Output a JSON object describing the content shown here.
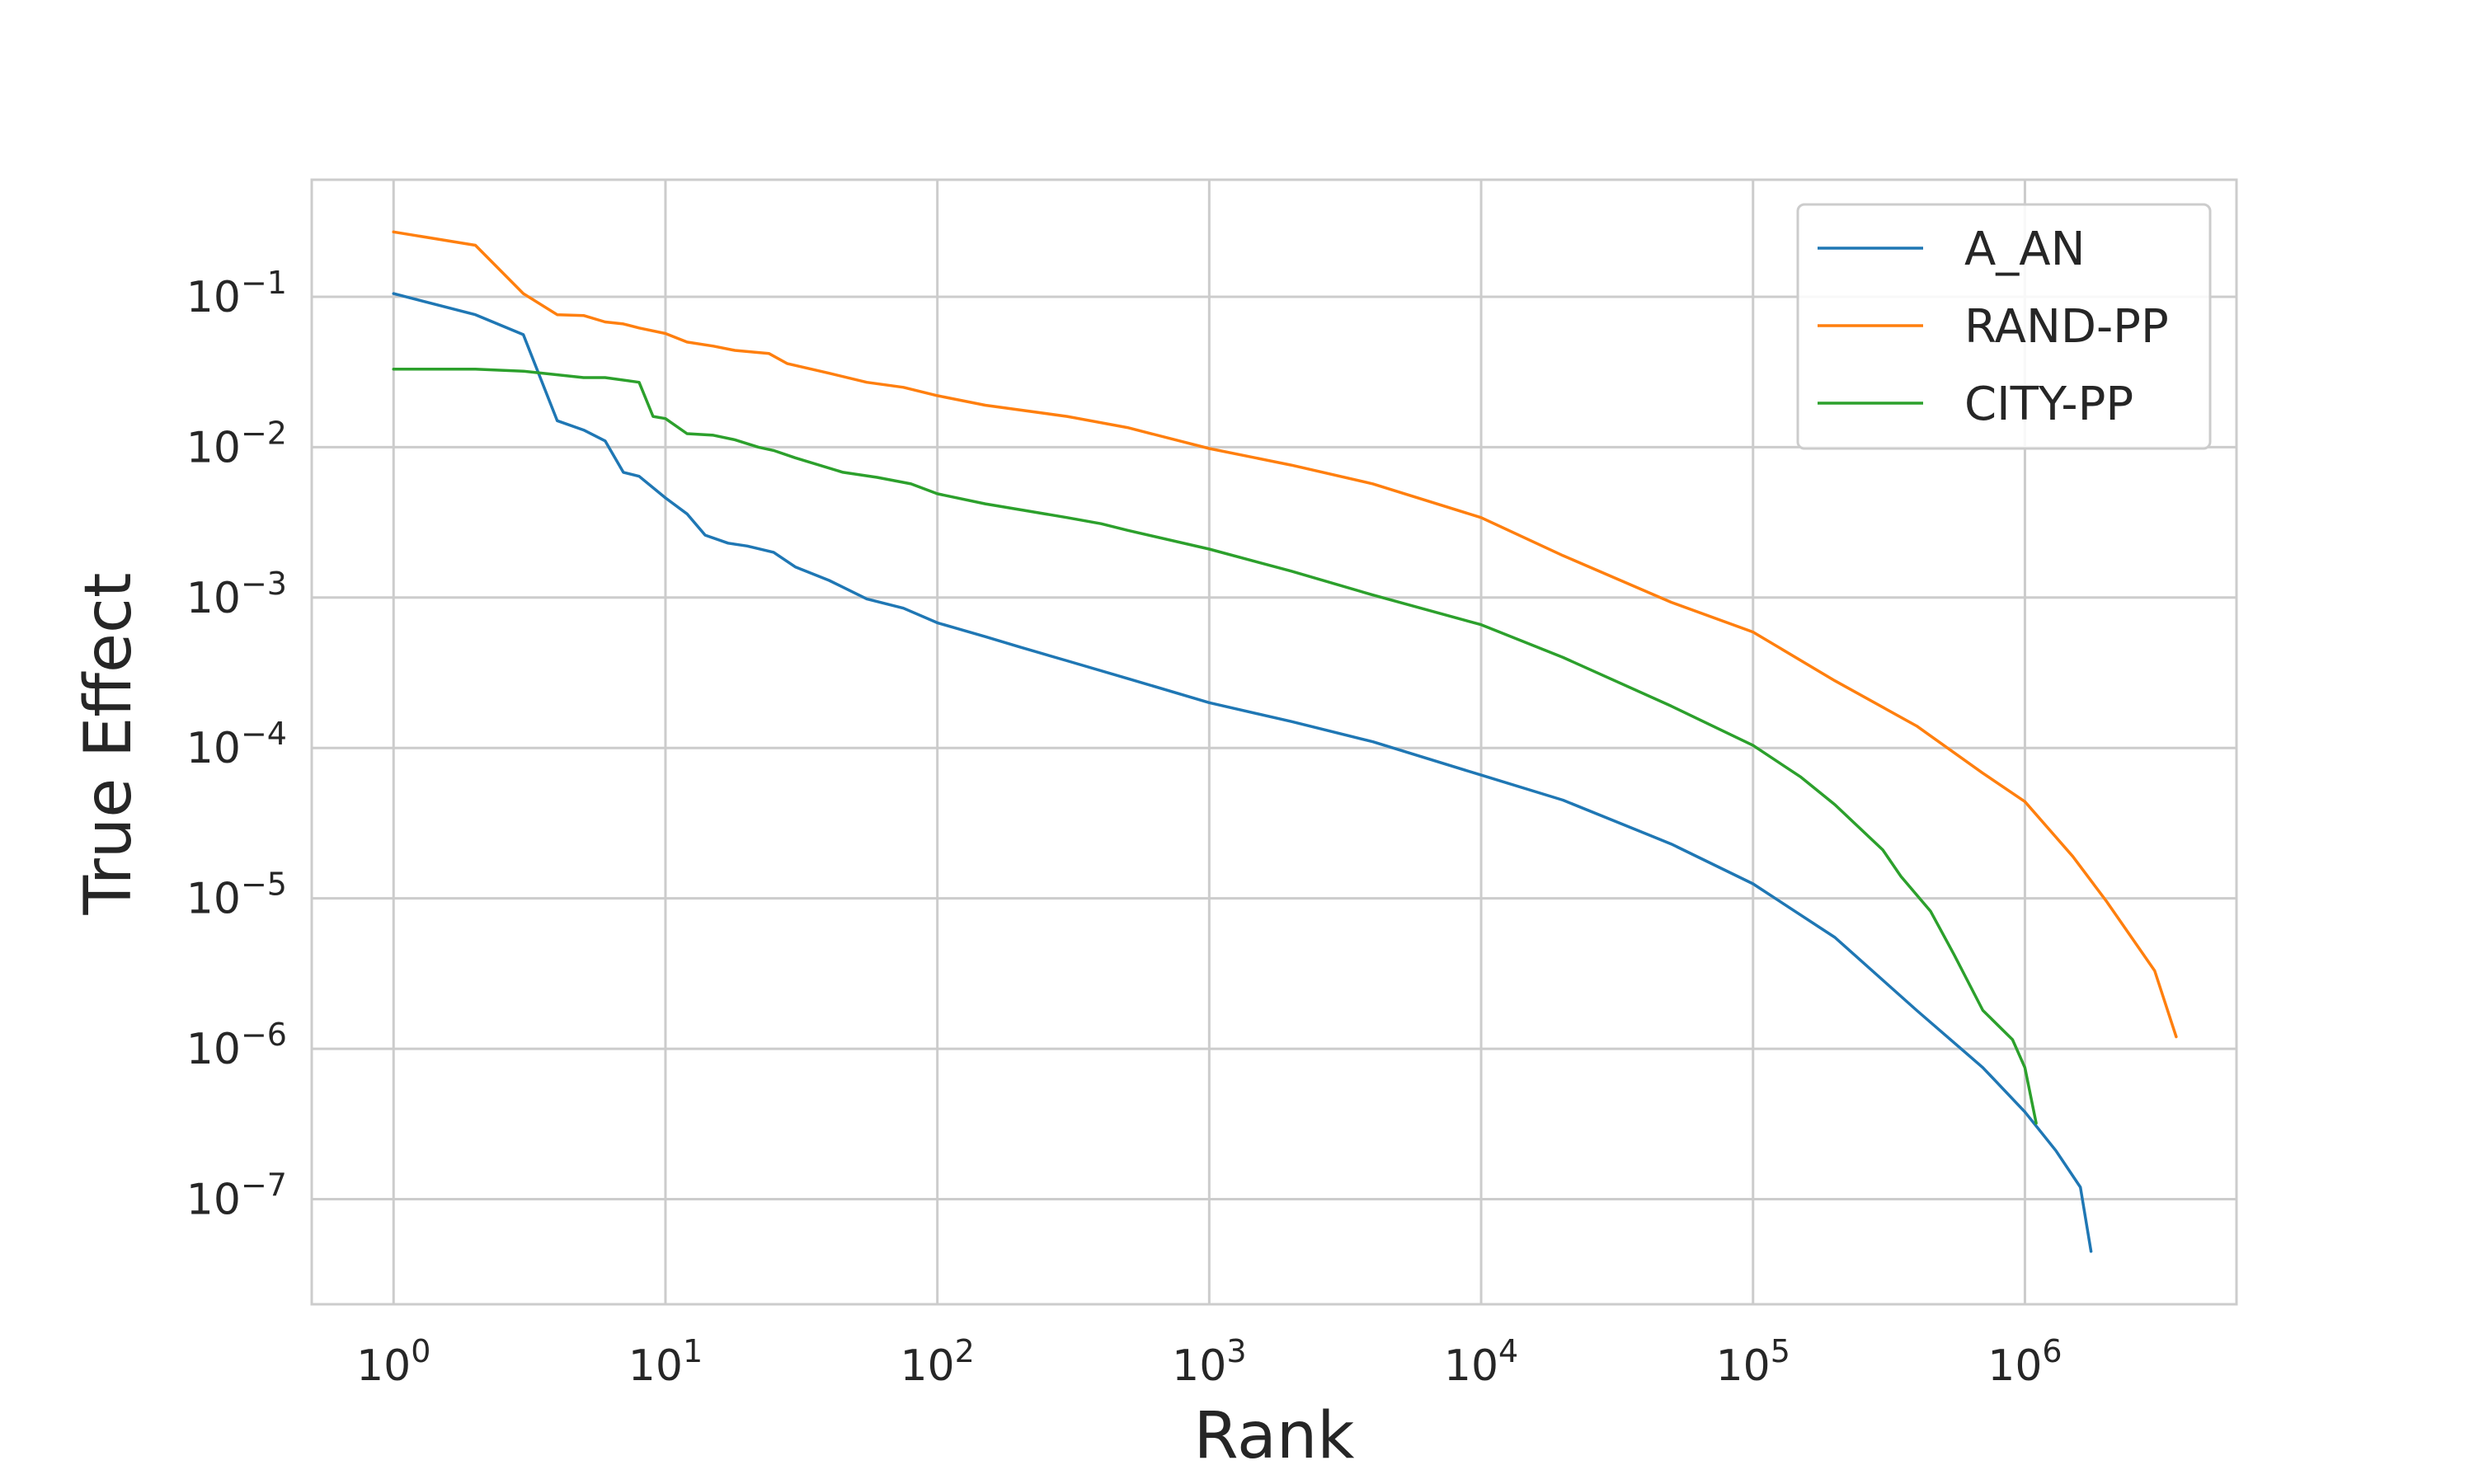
{
  "chart_data": {
    "type": "line",
    "title": "",
    "xlabel": "Rank",
    "ylabel": "True Effect",
    "xscale": "log",
    "yscale": "log",
    "xlim": [
      0.5,
      6000000
    ],
    "ylim": [
      2e-08,
      0.6
    ],
    "grid": true,
    "legend_position": "upper right",
    "x_ticks": [
      {
        "value": 1,
        "base": "10",
        "exp": "0"
      },
      {
        "value": 10,
        "base": "10",
        "exp": "1"
      },
      {
        "value": 100,
        "base": "10",
        "exp": "2"
      },
      {
        "value": 1000,
        "base": "10",
        "exp": "3"
      },
      {
        "value": 10000,
        "base": "10",
        "exp": "4"
      },
      {
        "value": 100000,
        "base": "10",
        "exp": "5"
      },
      {
        "value": 1000000,
        "base": "10",
        "exp": "6"
      }
    ],
    "y_ticks": [
      {
        "value": 0.1,
        "base": "10",
        "exp": "−1"
      },
      {
        "value": 0.01,
        "base": "10",
        "exp": "−2"
      },
      {
        "value": 0.001,
        "base": "10",
        "exp": "−3"
      },
      {
        "value": 0.0001,
        "base": "10",
        "exp": "−4"
      },
      {
        "value": 1e-05,
        "base": "10",
        "exp": "−5"
      },
      {
        "value": 1e-06,
        "base": "10",
        "exp": "−6"
      },
      {
        "value": 1e-07,
        "base": "10",
        "exp": "−7"
      }
    ],
    "series": [
      {
        "name": "A_AN",
        "color": "#1f77b4",
        "points": [
          [
            1,
            0.105
          ],
          [
            2,
            0.076
          ],
          [
            3,
            0.056
          ],
          [
            4,
            0.015
          ],
          [
            5,
            0.013
          ],
          [
            6,
            0.011
          ],
          [
            7,
            0.0068
          ],
          [
            8,
            0.0064
          ],
          [
            10,
            0.0046
          ],
          [
            12,
            0.0036
          ],
          [
            14,
            0.0026
          ],
          [
            17,
            0.0023
          ],
          [
            20,
            0.0022
          ],
          [
            25,
            0.002
          ],
          [
            30,
            0.0016
          ],
          [
            40,
            0.0013
          ],
          [
            55,
            0.00098
          ],
          [
            75,
            0.00085
          ],
          [
            100,
            0.00068
          ],
          [
            150,
            0.00055
          ],
          [
            200,
            0.00047
          ],
          [
            300,
            0.00038
          ],
          [
            500,
            0.00029
          ],
          [
            1000,
            0.0002
          ],
          [
            2000,
            0.00015
          ],
          [
            4000,
            0.00011
          ],
          [
            10000,
            6.6e-05
          ],
          [
            20000,
            4.5e-05
          ],
          [
            50000,
            2.3e-05
          ],
          [
            100000,
            1.25e-05
          ],
          [
            200000,
            5.5e-06
          ],
          [
            400000,
            1.8e-06
          ],
          [
            700000,
            7.5e-07
          ],
          [
            1000000,
            3.8e-07
          ],
          [
            1300000,
            2.1e-07
          ],
          [
            1600000,
            1.2e-07
          ],
          [
            1750000,
            4.5e-08
          ]
        ]
      },
      {
        "name": "RAND-PP",
        "color": "#ff7f0e",
        "points": [
          [
            1,
            0.27
          ],
          [
            2,
            0.22
          ],
          [
            3,
            0.105
          ],
          [
            4,
            0.076
          ],
          [
            5,
            0.075
          ],
          [
            6,
            0.068
          ],
          [
            7,
            0.066
          ],
          [
            8,
            0.062
          ],
          [
            10,
            0.057
          ],
          [
            12,
            0.05
          ],
          [
            15,
            0.047
          ],
          [
            18,
            0.044
          ],
          [
            24,
            0.042
          ],
          [
            28,
            0.036
          ],
          [
            40,
            0.031
          ],
          [
            55,
            0.027
          ],
          [
            75,
            0.025
          ],
          [
            100,
            0.022
          ],
          [
            150,
            0.019
          ],
          [
            300,
            0.016
          ],
          [
            500,
            0.0135
          ],
          [
            1000,
            0.0098
          ],
          [
            2000,
            0.0076
          ],
          [
            4000,
            0.0057
          ],
          [
            10000,
            0.0034
          ],
          [
            20000,
            0.0019
          ],
          [
            50000,
            0.00093
          ],
          [
            100000,
            0.00059
          ],
          [
            200000,
            0.00028
          ],
          [
            400000,
            0.00014
          ],
          [
            700000,
            6.8e-05
          ],
          [
            1000000,
            4.4e-05
          ],
          [
            1500000,
            1.9e-05
          ],
          [
            2000000,
            9.5e-06
          ],
          [
            3000000,
            3.3e-06
          ],
          [
            3600000,
            1.2e-06
          ]
        ]
      },
      {
        "name": "CITY-PP",
        "color": "#2ca02c",
        "points": [
          [
            1,
            0.033
          ],
          [
            2,
            0.033
          ],
          [
            3,
            0.032
          ],
          [
            5,
            0.029
          ],
          [
            6,
            0.029
          ],
          [
            8,
            0.027
          ],
          [
            9,
            0.016
          ],
          [
            10,
            0.0155
          ],
          [
            12,
            0.0123
          ],
          [
            15,
            0.012
          ],
          [
            18,
            0.0112
          ],
          [
            22,
            0.01
          ],
          [
            25,
            0.0095
          ],
          [
            30,
            0.0085
          ],
          [
            45,
            0.0068
          ],
          [
            60,
            0.0063
          ],
          [
            80,
            0.0057
          ],
          [
            100,
            0.0049
          ],
          [
            150,
            0.0042
          ],
          [
            300,
            0.0034
          ],
          [
            400,
            0.0031
          ],
          [
            500,
            0.0028
          ],
          [
            1000,
            0.0021
          ],
          [
            2000,
            0.0015
          ],
          [
            4000,
            0.00104
          ],
          [
            10000,
            0.00066
          ],
          [
            20000,
            0.0004
          ],
          [
            50000,
            0.00019
          ],
          [
            100000,
            0.000104
          ],
          [
            150000,
            6.4e-05
          ],
          [
            200000,
            4.2e-05
          ],
          [
            300000,
            2.1e-05
          ],
          [
            350000,
            1.4e-05
          ],
          [
            450000,
            8.2e-06
          ],
          [
            550000,
            4.2e-06
          ],
          [
            700000,
            1.8e-06
          ],
          [
            900000,
            1.15e-06
          ],
          [
            1000000,
            7.5e-07
          ],
          [
            1100000,
            3.2e-07
          ]
        ]
      }
    ]
  }
}
